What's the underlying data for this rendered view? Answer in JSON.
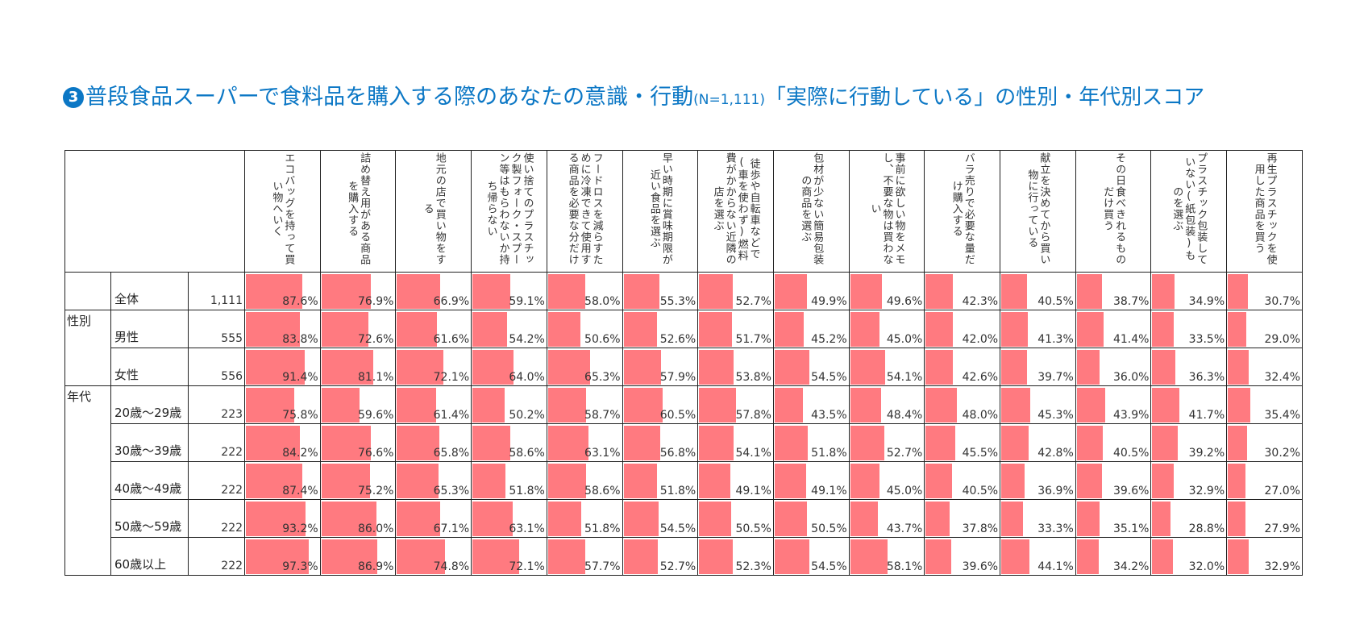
{
  "title": {
    "badge": "3",
    "main": "普段食品スーパーで食料品を購入する際のあなたの意識・行動",
    "n": "(N=1,111)",
    "sub": "「実際に行動している」の性別・年代別スコア"
  },
  "colors": {
    "title": "#0b77c5",
    "bar": "#ff7a80"
  },
  "chart_data": {
    "type": "table",
    "columns": [
      "エコバッグを持って買い物へいく",
      "詰め替え用がある商品を購入する",
      "地元の店で買い物をする",
      "使い捨てのプラスチック製フォーク・スプーン等はもらわないか持ち帰らない",
      "フードロスを減らすために冷凍できて使用する商品を必要な分だけ",
      "早い時期に賞味期限が近い食品を選ぶ",
      "徒歩や自転車などで(車を使わず)燃料費がかからない近隣の店を選ぶ",
      "包材が少ない簡易包装の商品を選ぶ",
      "事前に欲しい物をメモし、不要な物は買わない",
      "バラ売りで必要な量だけ購入する",
      "献立を決めてから買い物に行っている",
      "その日食べきれるものだけ買う",
      "プラスチック包装していない(紙包装)ものを選ぶ",
      "再生プラスチックを使用した商品を買う"
    ],
    "segments": [
      {
        "group": "",
        "label": "全体",
        "n": "1,111",
        "values": [
          "87.6%",
          "76.9%",
          "66.9%",
          "59.1%",
          "58.0%",
          "55.3%",
          "52.7%",
          "49.9%",
          "49.6%",
          "42.3%",
          "40.5%",
          "38.7%",
          "34.9%",
          "30.7%"
        ]
      },
      {
        "group": "性別",
        "label": "男性",
        "n": "555",
        "values": [
          "83.8%",
          "72.6%",
          "61.6%",
          "54.2%",
          "50.6%",
          "52.6%",
          "51.7%",
          "45.2%",
          "45.0%",
          "42.0%",
          "41.3%",
          "41.4%",
          "33.5%",
          "29.0%"
        ]
      },
      {
        "group": "",
        "label": "女性",
        "n": "556",
        "values": [
          "91.4%",
          "81.1%",
          "72.1%",
          "64.0%",
          "65.3%",
          "57.9%",
          "53.8%",
          "54.5%",
          "54.1%",
          "42.6%",
          "39.7%",
          "36.0%",
          "36.3%",
          "32.4%"
        ]
      },
      {
        "group": "年代",
        "label": "20歳～29歳",
        "n": "223",
        "values": [
          "75.8%",
          "59.6%",
          "61.4%",
          "50.2%",
          "58.7%",
          "60.5%",
          "57.8%",
          "43.5%",
          "48.4%",
          "48.0%",
          "45.3%",
          "43.9%",
          "41.7%",
          "35.4%"
        ]
      },
      {
        "group": "",
        "label": "30歳～39歳",
        "n": "222",
        "values": [
          "84.2%",
          "76.6%",
          "65.8%",
          "58.6%",
          "63.1%",
          "56.8%",
          "54.1%",
          "51.8%",
          "52.7%",
          "45.5%",
          "42.8%",
          "40.5%",
          "39.2%",
          "30.2%"
        ]
      },
      {
        "group": "",
        "label": "40歳～49歳",
        "n": "222",
        "values": [
          "87.4%",
          "75.2%",
          "65.3%",
          "51.8%",
          "58.6%",
          "51.8%",
          "49.1%",
          "49.1%",
          "45.0%",
          "40.5%",
          "36.9%",
          "39.6%",
          "32.9%",
          "27.0%"
        ]
      },
      {
        "group": "",
        "label": "50歳～59歳",
        "n": "222",
        "values": [
          "93.2%",
          "86.0%",
          "67.1%",
          "63.1%",
          "51.8%",
          "54.5%",
          "50.5%",
          "50.5%",
          "43.7%",
          "37.8%",
          "33.3%",
          "35.1%",
          "28.8%",
          "27.9%"
        ]
      },
      {
        "group": "",
        "label": "60歳以上",
        "n": "222",
        "values": [
          "97.3%",
          "86.9%",
          "74.8%",
          "72.1%",
          "57.7%",
          "52.7%",
          "52.3%",
          "54.5%",
          "58.1%",
          "39.6%",
          "44.1%",
          "34.2%",
          "32.0%",
          "32.9%"
        ]
      }
    ]
  }
}
